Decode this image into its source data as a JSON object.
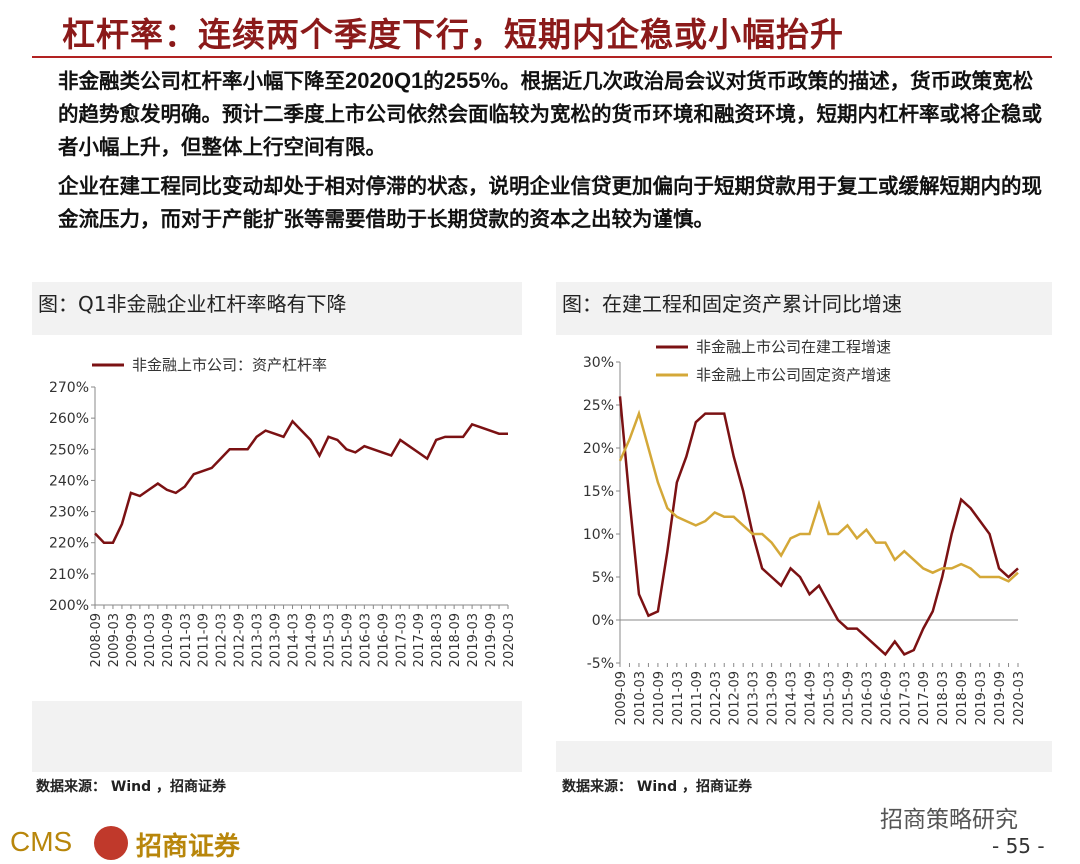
{
  "header": {
    "title": "杠杆率：连续两个季度下行，短期内企稳或小幅抬升"
  },
  "paragraphs": [
    [
      "非金融类公司杠杆率小幅下降至",
      "2020Q1",
      "的",
      "255%",
      "。根据近几次政治局会议对货币政策的描述，货币政策宽松的趋势愈发明确。预计二季度上市公司依然会面临较为宽松的货币环境和融资环境，短期内杠杆率或将企稳或者小幅上升，但整体上行空间有限。"
    ],
    [
      "企业在建工程同比变动却处于相对停滞的状态，说明企业信贷更加偏向于短期贷款用于复工或缓解短期内的现金流压力，而对于产能扩张等需要借助于长期贷款的资本之出较为谨慎。"
    ]
  ],
  "chart_data": [
    {
      "type": "line",
      "title": "图：Q1非金融企业杠杆率略有下降",
      "source": "数据来源： Wind ，招商证券",
      "categories": [
        "2008-09",
        null,
        "2009-03",
        null,
        "2009-09",
        null,
        "2010-03",
        null,
        "2010-09",
        null,
        "2011-03",
        null,
        "2011-09",
        null,
        "2012-03",
        null,
        "2012-09",
        null,
        "2013-03",
        null,
        "2013-09",
        null,
        "2014-03",
        null,
        "2014-09",
        null,
        "2015-03",
        null,
        "2015-09",
        null,
        "2016-03",
        null,
        "2016-09",
        null,
        "2017-03",
        null,
        "2017-09",
        null,
        "2018-03",
        null,
        "2018-09",
        null,
        "2019-03",
        null,
        "2019-09",
        null,
        "2020-03"
      ],
      "series": [
        {
          "name": "非金融上市公司：资产杠杆率",
          "color": "#7b1113",
          "values": [
            223,
            220,
            220,
            226,
            236,
            235,
            237,
            239,
            237,
            236,
            238,
            242,
            243,
            244,
            247,
            250,
            250,
            250,
            254,
            256,
            255,
            254,
            259,
            256,
            253,
            248,
            254,
            253,
            250,
            249,
            251,
            250,
            249,
            248,
            253,
            251,
            249,
            247,
            253,
            254,
            254,
            254,
            258,
            257,
            256,
            255,
            255
          ]
        }
      ],
      "ylim": [
        200,
        270
      ],
      "yticks": [
        {
          "value": 200,
          "label": "200%"
        },
        {
          "value": 210,
          "label": "210%"
        },
        {
          "value": 220,
          "label": "220%"
        },
        {
          "value": 230,
          "label": "230%"
        },
        {
          "value": 240,
          "label": "240%"
        },
        {
          "value": 250,
          "label": "250%"
        },
        {
          "value": 260,
          "label": "260%"
        },
        {
          "value": 270,
          "label": "270%"
        }
      ]
    },
    {
      "type": "line",
      "title": "图：在建工程和固定资产累计同比增速",
      "source": "数据来源： Wind ，招商证券",
      "categories": [
        "2009-09",
        null,
        "2010-03",
        null,
        "2010-09",
        null,
        "2011-03",
        null,
        "2011-09",
        null,
        "2012-03",
        null,
        "2012-09",
        null,
        "2013-03",
        null,
        "2013-09",
        null,
        "2014-03",
        null,
        "2014-09",
        null,
        "2015-03",
        null,
        "2015-09",
        null,
        "2016-03",
        null,
        "2016-09",
        null,
        "2017-03",
        null,
        "2017-09",
        null,
        "2018-03",
        null,
        "2018-09",
        null,
        "2019-03",
        null,
        "2019-09",
        null,
        "2020-03"
      ],
      "series": [
        {
          "name": "非金融上市公司在建工程增速",
          "color": "#7b1113",
          "values": [
            26,
            14,
            3,
            0.5,
            1,
            8,
            16,
            19,
            23,
            24,
            24,
            24,
            19,
            15,
            10,
            6,
            5,
            4,
            6,
            5,
            3,
            4,
            2,
            0,
            -1,
            -1,
            -2,
            -3,
            -4,
            -2.5,
            -4,
            -3.5,
            -1,
            1,
            5,
            10,
            14,
            13,
            11.5,
            10,
            6,
            5,
            6
          ]
        },
        {
          "name": "非金融上市公司固定资产增速",
          "color": "#d4a838",
          "values": [
            18.5,
            21,
            24,
            20,
            16,
            13,
            12,
            11.5,
            11,
            11.5,
            12.5,
            12,
            12,
            11,
            10,
            10,
            9,
            7.5,
            9.5,
            10,
            10,
            13.5,
            10,
            10,
            11,
            9.5,
            10.5,
            9,
            9,
            7,
            8,
            7,
            6,
            5.5,
            6,
            6,
            6.5,
            6,
            5,
            5,
            5,
            4.5,
            5.5
          ]
        }
      ],
      "ylim": [
        -5,
        30
      ],
      "yticks": [
        {
          "value": -5,
          "label": "-5%"
        },
        {
          "value": 0,
          "label": "0%"
        },
        {
          "value": 5,
          "label": "5%"
        },
        {
          "value": 10,
          "label": "10%"
        },
        {
          "value": 15,
          "label": "15%"
        },
        {
          "value": 20,
          "label": "20%"
        },
        {
          "value": 25,
          "label": "25%"
        },
        {
          "value": 30,
          "label": "30%"
        }
      ]
    }
  ],
  "footer": {
    "logo": "CMS",
    "company": "招商证券",
    "watermark": "招商策略研究",
    "page": "- 55 -"
  }
}
